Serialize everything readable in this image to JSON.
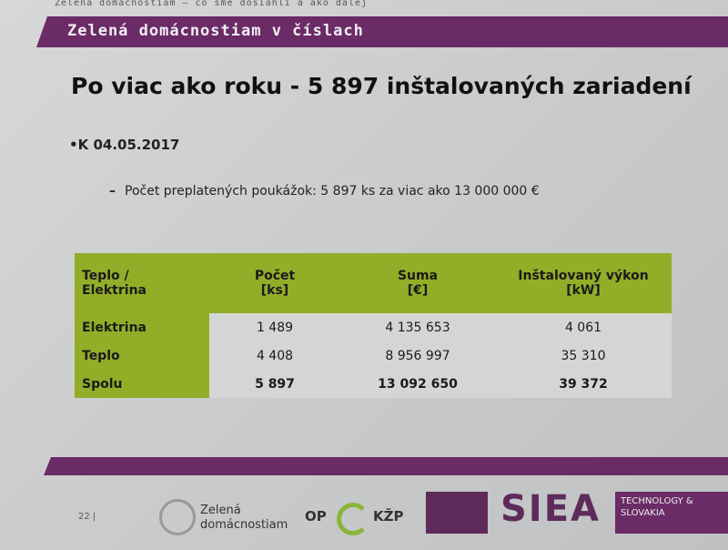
{
  "header": {
    "top": "Zelená domácnostiam – čo sme dosiahli a ako ďalej",
    "banner": "Zelená domácnostiam v číslach"
  },
  "title": "Po viac ako roku  - 5 897  inštalovaných zariadení",
  "bullet": "K 04.05.2017",
  "subbullet": "Počet preplatených poukážok: 5 897 ks za viac ako 13 000 000 €",
  "table": {
    "header": [
      [
        "Teplo /",
        "Elektrina"
      ],
      [
        "Počet",
        "[ks]"
      ],
      [
        "Suma",
        "[€]"
      ],
      [
        "Inštalovaný výkon",
        "[kW]"
      ]
    ],
    "rows": [
      [
        "Elektrina",
        "1 489",
        "4 135 653",
        "4 061"
      ],
      [
        "Teplo",
        "4 408",
        "8 956 997",
        "35 310"
      ],
      [
        "Spolu",
        "5 897",
        "13 092 650",
        "39 372"
      ]
    ]
  },
  "footer": {
    "page": "22",
    "logo1": [
      "Zelená",
      "domácnostiam"
    ],
    "logo2": [
      "OP",
      "KŽP"
    ],
    "logo3": "SIEA",
    "logo4": [
      "TECHNOLOGY &",
      "SLOVAKIA"
    ]
  }
}
